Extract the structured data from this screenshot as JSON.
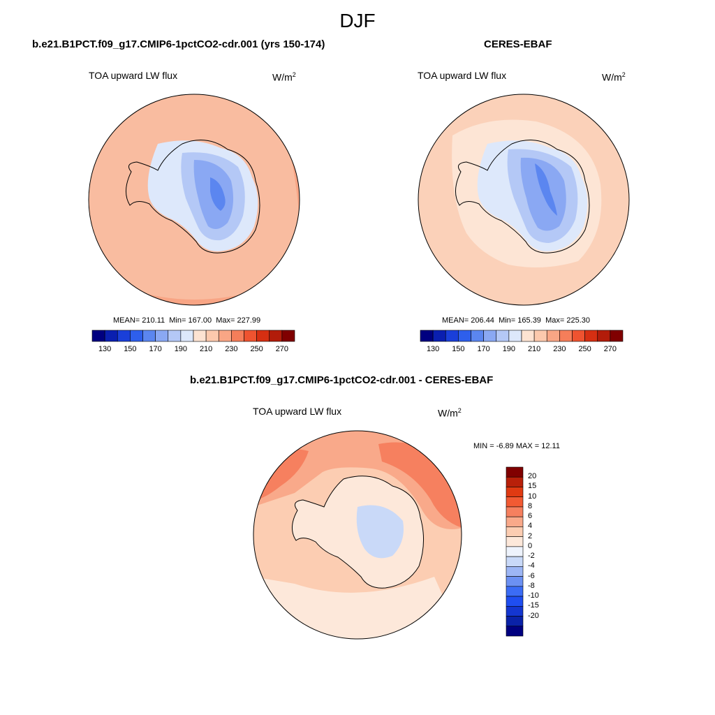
{
  "title": "DJF",
  "panels": [
    {
      "case": "b.e21.B1PCT.f09_g17.CMIP6-1pctCO2-cdr.001 (yrs 150-174)",
      "variable": "TOA upward LW flux",
      "unit_base": "W/m",
      "unit_exp": "2",
      "mean_label": "MEAN=",
      "mean": "210.11",
      "min_label": "Min=",
      "min": "167.00",
      "max_label": "Max=",
      "max": "227.99"
    },
    {
      "case": "CERES-EBAF",
      "variable": "TOA upward LW flux",
      "unit_base": "W/m",
      "unit_exp": "2",
      "mean_label": "MEAN=",
      "mean": "206.44",
      "min_label": "Min=",
      "min": "165.39",
      "max_label": "Max=",
      "max": "225.30"
    },
    {
      "case": "b.e21.B1PCT.f09_g17.CMIP6-1pctCO2-cdr.001 - CERES-EBAF",
      "variable": "TOA upward LW flux",
      "unit_base": "W/m",
      "unit_exp": "2",
      "min_label": "MIN =",
      "min": "-6.89",
      "max_label": "MAX =",
      "max": "12.11"
    }
  ],
  "abs_colorbar": {
    "colors": [
      "#000080",
      "#0a1fb0",
      "#1a3fd9",
      "#2e5fec",
      "#5b86f0",
      "#8aa8f3",
      "#b4c8f6",
      "#dde8fb",
      "#fde3d2",
      "#fcc9ad",
      "#f9a685",
      "#f57e5a",
      "#ef5330",
      "#d62f12",
      "#b21c0a",
      "#800000"
    ],
    "labels": [
      "130",
      "150",
      "170",
      "190",
      "210",
      "230",
      "250",
      "270"
    ]
  },
  "diff_colorbar": {
    "colors": [
      "#000080",
      "#0a22a8",
      "#1436d0",
      "#1f4ef0",
      "#3b6cf5",
      "#6c91f3",
      "#9db6f5",
      "#c9d9f8",
      "#eef3fc",
      "#fde8da",
      "#fccdb2",
      "#f9a98a",
      "#f6805f",
      "#f25a33",
      "#e03a12",
      "#b8200a",
      "#800000"
    ],
    "labels": [
      "20",
      "15",
      "10",
      "8",
      "6",
      "4",
      "2",
      "0",
      "-2",
      "-4",
      "-6",
      "-8",
      "-10",
      "-15",
      "-20"
    ]
  },
  "map_colors": {
    "ocean_model": "#f9bca0",
    "ocean_model_edge": "#f7a282",
    "ocean_obs": "#fbd1b9",
    "ocean_obs_pale": "#fde5d5",
    "ice_pale": "#dde8fb",
    "ice_light": "#b4c8f6",
    "ice_mid": "#8aa8f3",
    "ice_deep": "#5b86f0",
    "diff_high": "#f6805f",
    "diff_mid": "#f9a98a",
    "diff_low": "#fccdb2",
    "diff_pale": "#fde8da",
    "diff_neg": "#c9d9f8"
  }
}
